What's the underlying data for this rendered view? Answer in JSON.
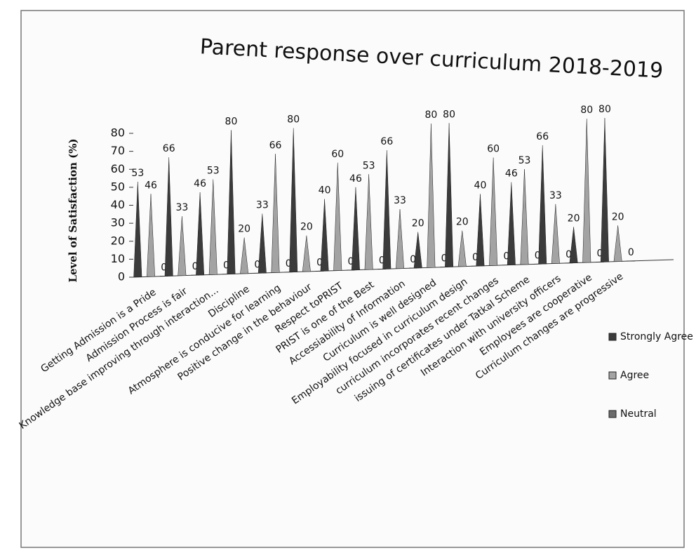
{
  "chart_data": {
    "type": "cone",
    "title": "Parent response over curriculum 2018-2019",
    "y_label": "Level of Satisfaction (%)",
    "categories": [
      "Getting Admission is a Pride",
      "Admission Process is fair",
      "Knowledge base improving through interaction...",
      "Discipline",
      "Atmosphere is conducive for learning",
      "Positive change in the behaviour",
      "Respect toPRIST",
      "PRIST is one of the Best",
      "Accessiability of Information",
      "Curriculum is well designed",
      "Employability focused in curriculum design",
      "curriculum incorporates recent changes",
      "issuing of certificates under Tatkal Scheme",
      "Interaction with university officers",
      "Employees are cooperative",
      "Curriculum changes are progressive"
    ],
    "series": [
      {
        "name": "Strongly Agree",
        "color": "#3b3b3b",
        "values": [
          53,
          66,
          46,
          80,
          33,
          80,
          40,
          46,
          66,
          20,
          80,
          40,
          46,
          66,
          20,
          80
        ]
      },
      {
        "name": "Agree",
        "color": "#a3a3a3",
        "values": [
          46,
          33,
          53,
          20,
          66,
          20,
          60,
          53,
          33,
          80,
          20,
          60,
          53,
          33,
          80,
          20
        ]
      },
      {
        "name": "Neutral",
        "color": "#6c6c6c",
        "values": [
          0,
          0,
          0,
          0,
          0,
          0,
          0,
          0,
          0,
          0,
          0,
          0,
          0,
          0,
          0,
          0
        ]
      }
    ],
    "ylim": [
      0,
      80
    ],
    "yticks": [
      0,
      10,
      20,
      30,
      40,
      50,
      60,
      70,
      80
    ]
  }
}
